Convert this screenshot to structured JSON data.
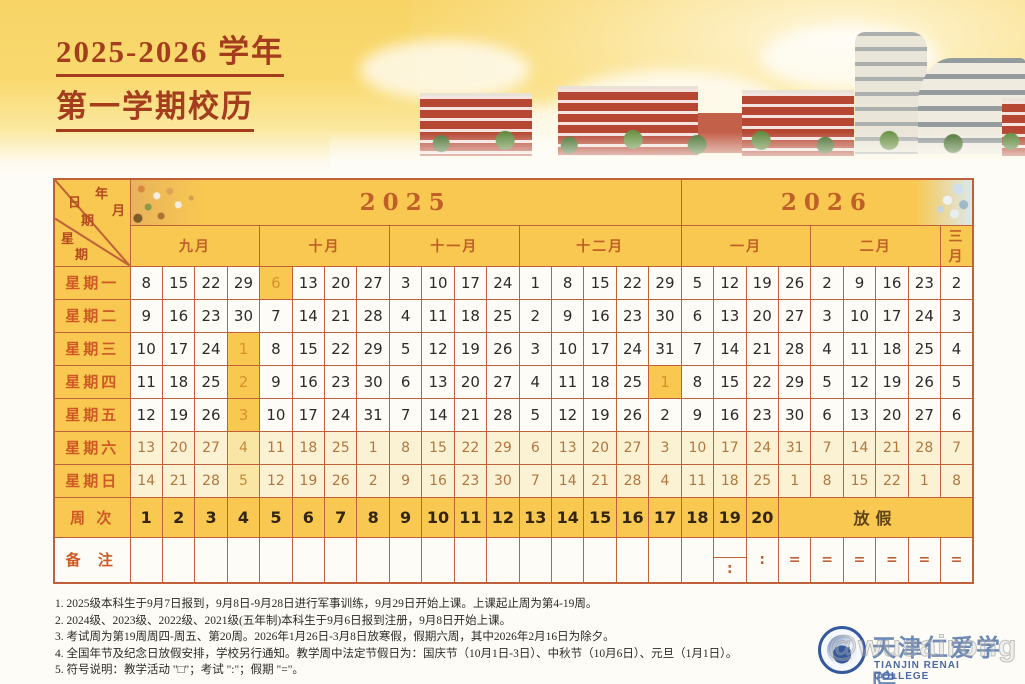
{
  "title": {
    "line1": "2025-2026 学年",
    "line2": "第一学期校历"
  },
  "colors": {
    "banner_yellow": "#f8d466",
    "table_border": "#c0613a",
    "gold_cell": "#f8c851",
    "weekend_cell": "#fbf2d4",
    "holiday_text": "#d8922c",
    "title_red": "#a33d1d",
    "logo_blue": "#33589c"
  },
  "table": {
    "corner": {
      "year": "年",
      "month": "月",
      "date1": "日",
      "date2": "期",
      "week1": "星",
      "week2": "期"
    },
    "years": [
      {
        "label": "2025",
        "span": 17
      },
      {
        "label": "2026",
        "span": 9
      }
    ],
    "months": [
      {
        "label": "九月",
        "span": 4
      },
      {
        "label": "十月",
        "span": 4
      },
      {
        "label": "十一月",
        "span": 4
      },
      {
        "label": "十二月",
        "span": 5
      },
      {
        "label": "一月",
        "span": 4
      },
      {
        "label": "二月",
        "span": 4
      },
      {
        "label": "三月",
        "span": 1
      }
    ],
    "day_rows": [
      {
        "label": "星期一",
        "weekend": false,
        "values": [
          "8",
          "15",
          "22",
          "29",
          "6",
          "13",
          "20",
          "27",
          "3",
          "10",
          "17",
          "24",
          "1",
          "8",
          "15",
          "22",
          "29",
          "5",
          "12",
          "19",
          "26",
          "2",
          "9",
          "16",
          "23",
          "2"
        ],
        "highlights": [
          4
        ],
        "soft": []
      },
      {
        "label": "星期二",
        "weekend": false,
        "values": [
          "9",
          "16",
          "23",
          "30",
          "7",
          "14",
          "21",
          "28",
          "4",
          "11",
          "18",
          "25",
          "2",
          "9",
          "16",
          "23",
          "30",
          "6",
          "13",
          "20",
          "27",
          "3",
          "10",
          "17",
          "24",
          "3"
        ],
        "highlights": [],
        "soft": []
      },
      {
        "label": "星期三",
        "weekend": false,
        "values": [
          "10",
          "17",
          "24",
          "1",
          "8",
          "15",
          "22",
          "29",
          "5",
          "12",
          "19",
          "26",
          "3",
          "10",
          "17",
          "24",
          "31",
          "7",
          "14",
          "21",
          "28",
          "4",
          "11",
          "18",
          "25",
          "4"
        ],
        "highlights": [
          3
        ],
        "soft": []
      },
      {
        "label": "星期四",
        "weekend": false,
        "values": [
          "11",
          "18",
          "25",
          "2",
          "9",
          "16",
          "23",
          "30",
          "6",
          "13",
          "20",
          "27",
          "4",
          "11",
          "18",
          "25",
          "1",
          "8",
          "15",
          "22",
          "29",
          "5",
          "12",
          "19",
          "26",
          "5"
        ],
        "highlights": [
          3,
          16
        ],
        "soft": []
      },
      {
        "label": "星期五",
        "weekend": false,
        "values": [
          "12",
          "19",
          "26",
          "3",
          "10",
          "17",
          "24",
          "31",
          "7",
          "14",
          "21",
          "28",
          "5",
          "12",
          "19",
          "26",
          "2",
          "9",
          "16",
          "23",
          "30",
          "6",
          "13",
          "20",
          "27",
          "6"
        ],
        "highlights": [
          3
        ],
        "soft": []
      },
      {
        "label": "星期六",
        "weekend": true,
        "values": [
          "13",
          "20",
          "27",
          "4",
          "11",
          "18",
          "25",
          "1",
          "8",
          "15",
          "22",
          "29",
          "6",
          "13",
          "20",
          "27",
          "3",
          "10",
          "17",
          "24",
          "31",
          "7",
          "14",
          "21",
          "28",
          "7"
        ],
        "highlights": [],
        "soft": [
          3
        ]
      },
      {
        "label": "星期日",
        "weekend": true,
        "values": [
          "14",
          "21",
          "28",
          "5",
          "12",
          "19",
          "26",
          "2",
          "9",
          "16",
          "23",
          "30",
          "7",
          "14",
          "21",
          "28",
          "4",
          "11",
          "18",
          "25",
          "1",
          "8",
          "15",
          "22",
          "1",
          "8"
        ],
        "highlights": [],
        "soft": [
          3
        ]
      }
    ],
    "week_row": {
      "label": "周 次",
      "numbers": [
        "1",
        "2",
        "3",
        "4",
        "5",
        "6",
        "7",
        "8",
        "9",
        "10",
        "11",
        "12",
        "13",
        "14",
        "15",
        "16",
        "17",
        "18",
        "19",
        "20"
      ],
      "vacation_label": "放假",
      "vacation_span": 6
    },
    "notes_row": {
      "label": "备 注",
      "cells": [
        "",
        "",
        "",
        "",
        "",
        "",
        "",
        "",
        "",
        "",
        "",
        "",
        "",
        "",
        "",
        "",
        "",
        "",
        "split",
        "exam",
        "vac",
        "vac",
        "vac",
        "vac",
        "vac",
        "vac"
      ],
      "exam_symbol": ":",
      "vacation_symbol": "="
    }
  },
  "footnotes": [
    "1. 2025级本科生于9月7日报到，9月8日-9月28日进行军事训练，9月29日开始上课。上课起止周为第4-19周。",
    "2. 2024级、2023级、2022级、2021级(五年制)本科生于9月6日报到注册，9月8日开始上课。",
    "3. 考试周为第19周周四-周五、第20周。2026年1月26日-3月8日放寒假，假期六周，其中2026年2月16日为除夕。",
    "4. 全国年节及纪念日放假安排，学校另行通知。教学周中法定节假日为：国庆节（10月1日-3日）、中秋节（10月6日）、元旦（1月1日）。",
    "5. 符号说明：教学活动 \"□\"；考试 \":\"；假期 \"=\"。"
  ],
  "logo": {
    "college_zh": "天津仁爱学院",
    "college_en": "TIANJIN RENAI COLLEGE",
    "emblem_text": "仁爱"
  },
  "watermark": "@wusairong"
}
